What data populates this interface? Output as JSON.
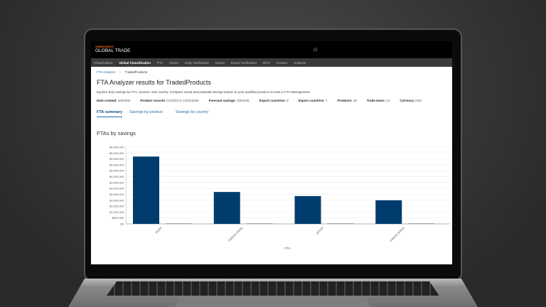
{
  "header": {
    "brand_small": "ONESOURCE",
    "brand": "GLOBAL TRADE",
    "home_icon": "home-icon"
  },
  "nav": [
    "Classification",
    "Global Classification",
    "FTA",
    "Import",
    "Entry Verification",
    "Export",
    "Export Verification",
    "DPS",
    "Content",
    "Analyzer"
  ],
  "nav_active": 1,
  "breadcrumb": {
    "parent": "FTA Analyzer",
    "sep": ">",
    "current": "TradedProducts"
  },
  "title": "FTA Analyzer results for TradedProducts",
  "description": "Explore duty savings by FTA, product, and country. Compare actual and potential savings based on your qualified product records in FTA Management.",
  "meta": [
    {
      "k": "Date created:",
      "v": "4/8/2025"
    },
    {
      "k": "Product records",
      "v": "1/1/2023 to 12/31/2025"
    },
    {
      "k": "Forecast savings:",
      "v": "4/8/2025"
    },
    {
      "k": "Export countries:",
      "v": "8"
    },
    {
      "k": "Import countries:",
      "v": "7"
    },
    {
      "k": "Products:",
      "v": "39"
    },
    {
      "k": "Trade lanes:",
      "v": "14"
    },
    {
      "k": "Currency",
      "v": "USD"
    }
  ],
  "tabs": [
    "FTA summary",
    "Savings by product",
    "Savings by country"
  ],
  "chart_title": "FTAs by savings",
  "chart_data": {
    "type": "bar",
    "title": "FTAs by savings",
    "xlabel": "FTA",
    "ylabel": "",
    "categories": [
      "RCEP",
      "ASEAN-CHINA",
      "CPTPP",
      "ASEAN-JAPAN"
    ],
    "series": [
      {
        "values": [
          5700000,
          2700000,
          2350000,
          2000000
        ],
        "color": "#003d6e"
      },
      {
        "values": [
          50000,
          50000,
          50000,
          50000
        ],
        "color": "#999999"
      }
    ],
    "ylim": [
      0,
      6500000
    ],
    "yticks": [
      "$0",
      "$500,000",
      "$1,000,000",
      "$1,500,000",
      "$2,000,000",
      "$2,500,000",
      "$3,000,000",
      "$3,500,000",
      "$4,000,000",
      "$4,500,000",
      "$5,000,000",
      "$5,500,000",
      "$6,000,000",
      "$6,500,000"
    ],
    "grid": true
  }
}
